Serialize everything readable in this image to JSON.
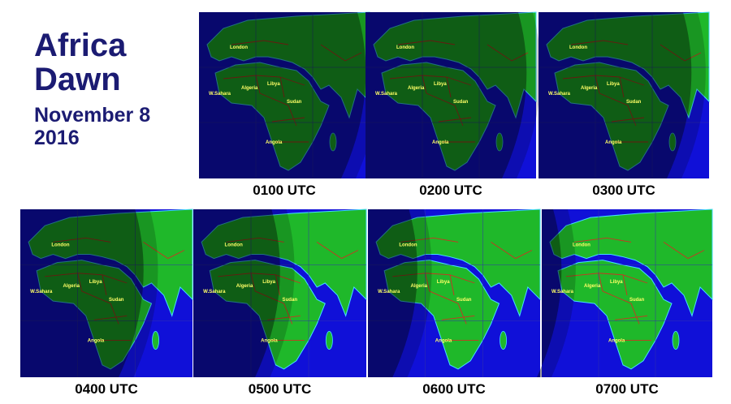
{
  "title": {
    "line1": "Africa",
    "line2": "Dawn",
    "date": "November 8",
    "year": "2016"
  },
  "panels": [
    "0100 UTC",
    "0200 UTC",
    "0300 UTC",
    "0400 UTC",
    "0500 UTC",
    "0600 UTC",
    "0700 UTC"
  ],
  "map_labels": [
    "London",
    "Algeria",
    "Libya",
    "Sudan",
    "Angola",
    "W.Sahara"
  ]
}
